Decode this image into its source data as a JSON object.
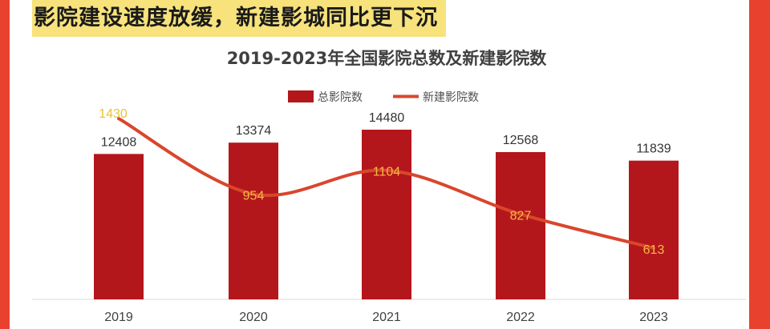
{
  "headline": "影院建设速度放缓，新建影城同比更下沉",
  "colors": {
    "frame": "#e8422f",
    "highlight": "#f7e27c",
    "bar": "#b3171c",
    "line": "#d9462c",
    "line_label_gold": "#e8c33a",
    "line_label_inner": "#f5b942"
  },
  "chart_data": {
    "type": "bar",
    "title": "2019-2023年全国影院总数及新建影院数",
    "categories": [
      "2019",
      "2020",
      "2021",
      "2022",
      "2023"
    ],
    "series": [
      {
        "name": "总影院数",
        "type": "bar",
        "values": [
          12408,
          13374,
          14480,
          12568,
          11839
        ]
      },
      {
        "name": "新建影院数",
        "type": "line",
        "smooth": true,
        "values": [
          1430,
          954,
          1104,
          827,
          613
        ]
      }
    ],
    "legend_position": "top-center",
    "grid": false,
    "y_axis_visible": false
  }
}
